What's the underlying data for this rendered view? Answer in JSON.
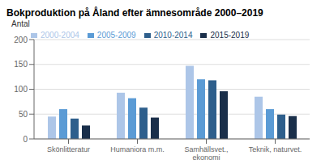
{
  "chart_data": {
    "type": "bar",
    "title": "Bokproduktion på Åland efter ämnesområde 2000–2019",
    "y_label": "Antal",
    "categories": [
      "Skönlitteratur",
      "Humaniora m.m.",
      "Samhällsvet.,\nekonomi",
      "Teknik, naturvet."
    ],
    "series": [
      {
        "name": "2000-2004",
        "color": "#adc6e8",
        "values": [
          45,
          93,
          147,
          85
        ]
      },
      {
        "name": "2005-2009",
        "color": "#5b9bd5",
        "values": [
          60,
          82,
          120,
          60
        ]
      },
      {
        "name": "2010-2014",
        "color": "#2e5f8c",
        "values": [
          41,
          63,
          118,
          49
        ]
      },
      {
        "name": "2015-2019",
        "color": "#1a2f4a",
        "values": [
          27,
          43,
          96,
          46
        ]
      }
    ],
    "ylim": [
      0,
      200
    ],
    "yticks": [
      0,
      50,
      100,
      150,
      200
    ],
    "grid": true,
    "legend": "upper left"
  }
}
